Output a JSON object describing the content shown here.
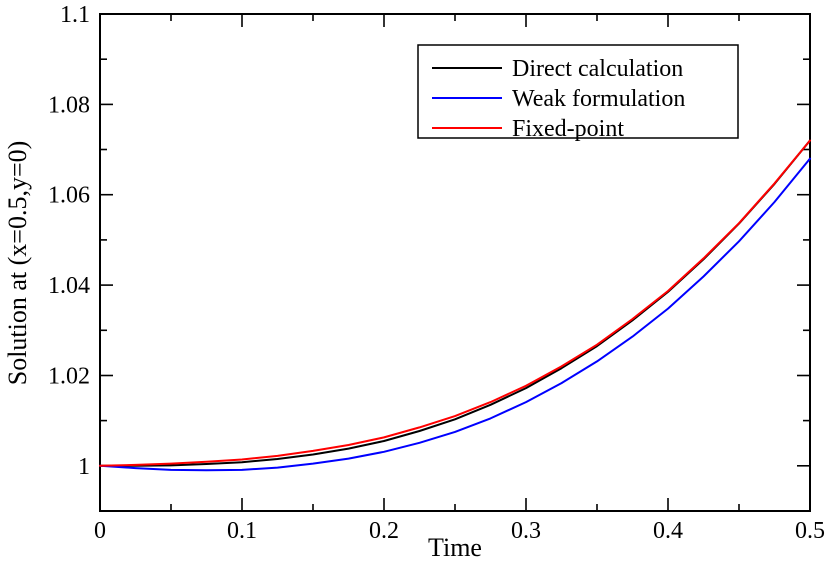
{
  "chart_data": {
    "type": "line",
    "title": "",
    "xlabel": "Time",
    "ylabel": "Solution at (x=0.5,y=0)",
    "xlim": [
      0,
      0.5
    ],
    "ylim": [
      0.99,
      1.1
    ],
    "grid": false,
    "background_color": "#ffffff",
    "frame_color": "#000000",
    "legend_position": "upper-center-right",
    "x_ticks": {
      "values": [
        0,
        0.1,
        0.2,
        0.3,
        0.4,
        0.5
      ],
      "labels": [
        "0",
        "0.1",
        "0.2",
        "0.3",
        "0.4",
        "0.5"
      ]
    },
    "x_minor_ticks": [
      0.05,
      0.15,
      0.25,
      0.35,
      0.45
    ],
    "y_ticks": {
      "values": [
        1.0,
        1.02,
        1.04,
        1.06,
        1.08,
        1.1
      ],
      "labels": [
        "1",
        "1.02",
        "1.04",
        "1.06",
        "1.08",
        "1.1"
      ]
    },
    "y_minor_ticks": [
      0.99,
      1.01,
      1.03,
      1.05,
      1.07,
      1.09
    ],
    "x": [
      0,
      0.025,
      0.05,
      0.075,
      0.1,
      0.125,
      0.15,
      0.175,
      0.2,
      0.225,
      0.25,
      0.275,
      0.3,
      0.325,
      0.35,
      0.375,
      0.4,
      0.425,
      0.45,
      0.475,
      0.5
    ],
    "series": [
      {
        "name": "Direct calculation",
        "color": "#000000",
        "values": [
          1.0,
          1.0,
          1.0001,
          1.0004,
          1.0008,
          1.0015,
          1.0025,
          1.0038,
          1.0055,
          1.0077,
          1.0103,
          1.0135,
          1.0172,
          1.0216,
          1.0265,
          1.0322,
          1.0385,
          1.0457,
          1.0536,
          1.0624,
          1.072
        ]
      },
      {
        "name": "Weak formulation",
        "color": "#0000ff",
        "values": [
          1.0,
          0.9995,
          0.9991,
          0.999,
          0.9991,
          0.9996,
          1.0005,
          1.0016,
          1.0031,
          1.0051,
          1.0075,
          1.0105,
          1.0141,
          1.0183,
          1.0231,
          1.0286,
          1.0348,
          1.0419,
          1.0497,
          1.0584,
          1.068
        ]
      },
      {
        "name": "Fixed-point",
        "color": "#ff0000",
        "values": [
          1.0,
          1.0002,
          1.0005,
          1.0009,
          1.0014,
          1.0022,
          1.0033,
          1.0046,
          1.0063,
          1.0085,
          1.011,
          1.0141,
          1.0177,
          1.022,
          1.0268,
          1.0325,
          1.0387,
          1.0459,
          1.0537,
          1.0625,
          1.072
        ]
      }
    ]
  }
}
